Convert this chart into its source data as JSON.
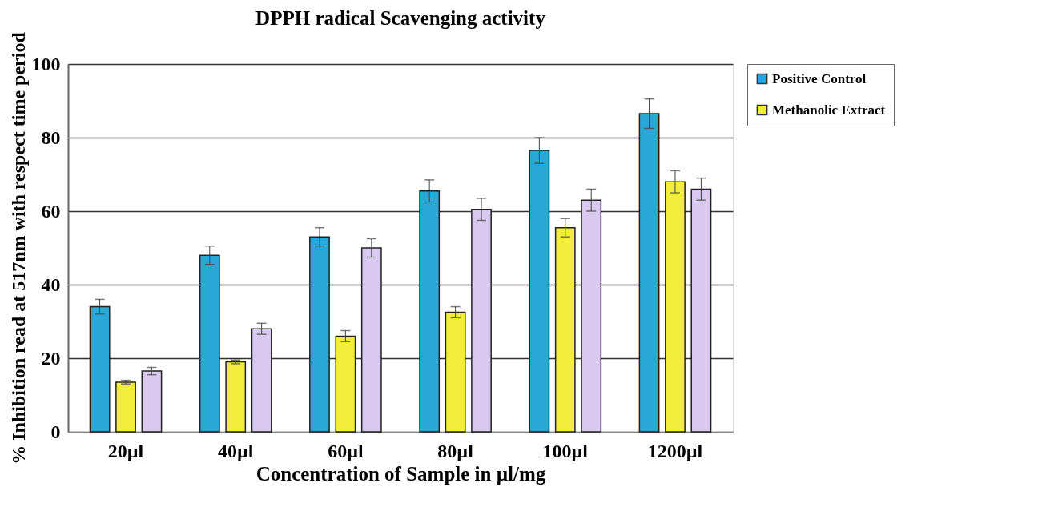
{
  "chart_data": {
    "type": "bar",
    "title": "DPPH radical Scavenging activity",
    "xlabel": "Concentration of Sample in µl/mg",
    "ylabel": "% Inhibition read at 517nm with respect time period",
    "categories": [
      "20µl",
      "40µl",
      "60µl",
      "80µl",
      "100µl",
      "1200µl"
    ],
    "series": [
      {
        "name": "Positive Control",
        "color": "#29a8d8",
        "values": [
          34,
          48,
          53,
          65.5,
          76.5,
          86.5
        ],
        "errors": [
          2,
          2.5,
          2.5,
          3,
          3.5,
          4
        ]
      },
      {
        "name": "Methanolic Extract",
        "color": "#f2ec3a",
        "values": [
          13.5,
          19,
          26,
          32.5,
          55.5,
          68
        ],
        "errors": [
          0.5,
          0.5,
          1.5,
          1.5,
          2.5,
          3
        ]
      },
      {
        "color": "#d9c8f0",
        "values": [
          16.5,
          28,
          50,
          60.5,
          63,
          66
        ],
        "errors": [
          1,
          1.5,
          2.5,
          3,
          3,
          3
        ]
      }
    ],
    "ylim": [
      0,
      100
    ],
    "yticks": [
      0,
      20,
      40,
      60,
      80,
      100
    ],
    "grid": "y",
    "legend": "right"
  }
}
